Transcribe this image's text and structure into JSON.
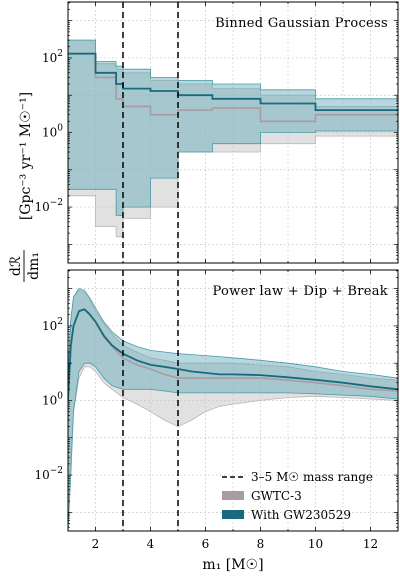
{
  "figure": {
    "shared_xlabel": "m₁ [M☉]",
    "shared_ylabel": "dℛ/dm₁ [Gpc⁻³ yr⁻¹ M☉⁻¹]",
    "ylabel_parts": {
      "numer": "dℛ",
      "denom": "dm₁",
      "units": "[Gpc⁻³ yr⁻¹ M☉⁻¹]"
    }
  },
  "legend": {
    "placement": "lower-right of bottom panel",
    "entries": [
      {
        "label": "3–5 M☉ mass range",
        "style": "dashed-line",
        "color": "#000000"
      },
      {
        "label": "GWTC-3",
        "style": "patch",
        "color": "#a89ca3"
      },
      {
        "label": "With GW230529",
        "style": "patch",
        "color": "#176b7d"
      }
    ]
  },
  "colors": {
    "gwtc3_fill": "#c8c8c8",
    "gwtc3_line": "#a89ca3",
    "gw230529_fill": "#5fa8b6",
    "gw230529_line": "#176b7d"
  },
  "chart_data": [
    {
      "type": "area",
      "title": "Binned Gaussian Process",
      "xlabel": "m₁ [M☉]",
      "ylabel": "dℛ/dm₁ [Gpc⁻³ yr⁻¹ M☉⁻¹]",
      "xlim": [
        1,
        13
      ],
      "ylim_log10": [
        -3.5,
        3.5
      ],
      "yscale": "log",
      "grid": true,
      "x_ticks": [
        2,
        4,
        6,
        8,
        10,
        12
      ],
      "y_ticks": [
        "10^-2",
        "10^0",
        "10^2"
      ],
      "vlines_x": [
        3,
        5
      ],
      "bin_edges": [
        1,
        2,
        2.75,
        3,
        4,
        5,
        6.25,
        8,
        10,
        13
      ],
      "series": [
        {
          "name": "GWTC-3",
          "median": [
            130,
            30,
            8,
            5,
            3,
            4,
            4.5,
            2,
            3
          ],
          "lower": [
            0.02,
            0.003,
            0.0016,
            0.005,
            0.01,
            0.3,
            0.3,
            0.5,
            0.8
          ],
          "upper": [
            300,
            70,
            50,
            40,
            25,
            20,
            15,
            10,
            5
          ]
        },
        {
          "name": "With GW230529",
          "median": [
            130,
            40,
            20,
            15,
            13,
            10,
            8,
            6,
            4
          ],
          "lower": [
            0.03,
            0.03,
            0.006,
            0.01,
            0.06,
            0.3,
            0.5,
            1,
            1.1
          ],
          "upper": [
            300,
            80,
            60,
            50,
            30,
            25,
            20,
            14,
            8
          ]
        }
      ]
    },
    {
      "type": "area",
      "title": "Power law + Dip + Break",
      "xlabel": "m₁ [M☉]",
      "ylabel": "dℛ/dm₁ [Gpc⁻³ yr⁻¹ M☉⁻¹]",
      "xlim": [
        1,
        13
      ],
      "ylim_log10": [
        -3.5,
        3.5
      ],
      "yscale": "log",
      "grid": true,
      "x_ticks": [
        2,
        4,
        6,
        8,
        10,
        12
      ],
      "y_ticks": [
        "10^-2",
        "10^0",
        "10^2"
      ],
      "vlines_x": [
        3,
        5
      ],
      "x": [
        1.0,
        1.1,
        1.2,
        1.4,
        1.6,
        1.8,
        2.0,
        2.3,
        2.6,
        3.0,
        3.5,
        4.0,
        4.5,
        5.0,
        5.5,
        6.0,
        6.5,
        7.0,
        8.0,
        9.0,
        10.0,
        11.0,
        12.0,
        13.0
      ],
      "series": [
        {
          "name": "GWTC-3",
          "median": [
            1,
            25,
            100,
            250,
            280,
            200,
            130,
            50,
            28,
            14,
            9,
            7,
            5,
            4,
            4,
            4,
            4,
            4,
            4,
            3.5,
            3,
            2.5,
            2,
            1.8
          ],
          "lower": [
            0.001,
            0.03,
            0.5,
            4,
            8,
            8,
            6,
            3,
            2,
            1.2,
            0.8,
            0.5,
            0.3,
            0.2,
            0.3,
            0.5,
            0.7,
            0.8,
            1,
            1.2,
            1.3,
            1.2,
            1.1,
            1.0
          ],
          "upper": [
            5,
            150,
            600,
            900,
            800,
            500,
            250,
            120,
            60,
            30,
            20,
            14,
            12,
            10,
            10,
            10,
            10,
            10,
            9,
            8,
            6,
            5,
            4,
            3.5
          ]
        },
        {
          "name": "With GW230529",
          "median": [
            1,
            30,
            100,
            250,
            280,
            200,
            130,
            55,
            30,
            18,
            12,
            9,
            8,
            7,
            6,
            5.5,
            5,
            5,
            4.8,
            4.2,
            3.6,
            3,
            2.4,
            2
          ],
          "lower": [
            0.0003,
            0.01,
            0.5,
            6,
            10,
            10,
            8,
            4,
            2.5,
            2,
            2,
            2,
            1.8,
            1.6,
            1.6,
            1.6,
            1.6,
            1.6,
            1.6,
            1.6,
            1.5,
            1.4,
            1.3,
            1.1
          ],
          "upper": [
            5,
            150,
            600,
            1000,
            900,
            550,
            300,
            130,
            70,
            40,
            28,
            22,
            20,
            18,
            17,
            16,
            15,
            14,
            12,
            10,
            8,
            6,
            5,
            4
          ]
        }
      ]
    }
  ]
}
